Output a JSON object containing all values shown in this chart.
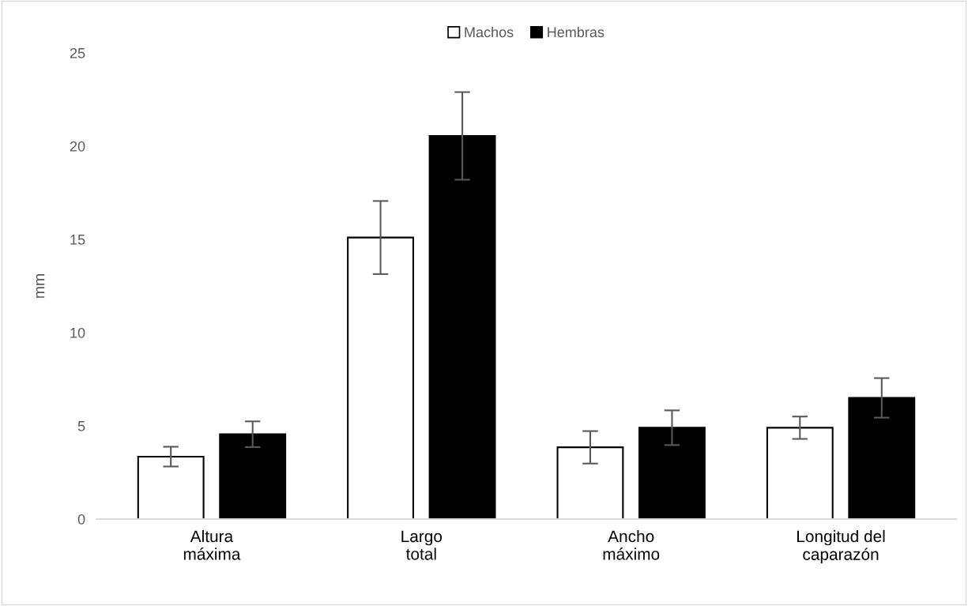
{
  "chart_data": {
    "type": "bar",
    "ylabel": "mm",
    "categories": [
      "Altura\nmáxima",
      "Largo\ntotal",
      "Ancho\nmáximo",
      "Longitud del\ncaparazón"
    ],
    "series": [
      {
        "name": "Machos",
        "color": "#ffffff",
        "values": [
          3.35,
          15.1,
          3.85,
          4.9
        ],
        "errors": [
          0.53,
          1.96,
          0.87,
          0.6
        ]
      },
      {
        "name": "Hembras",
        "color": "#000000",
        "values": [
          4.55,
          20.55,
          4.9,
          6.5
        ],
        "errors": [
          0.69,
          2.35,
          0.93,
          1.06
        ]
      }
    ],
    "ylim": [
      0,
      25
    ],
    "yticks": [
      0,
      5,
      10,
      15,
      20,
      25
    ],
    "grid": false,
    "legend": "top"
  }
}
